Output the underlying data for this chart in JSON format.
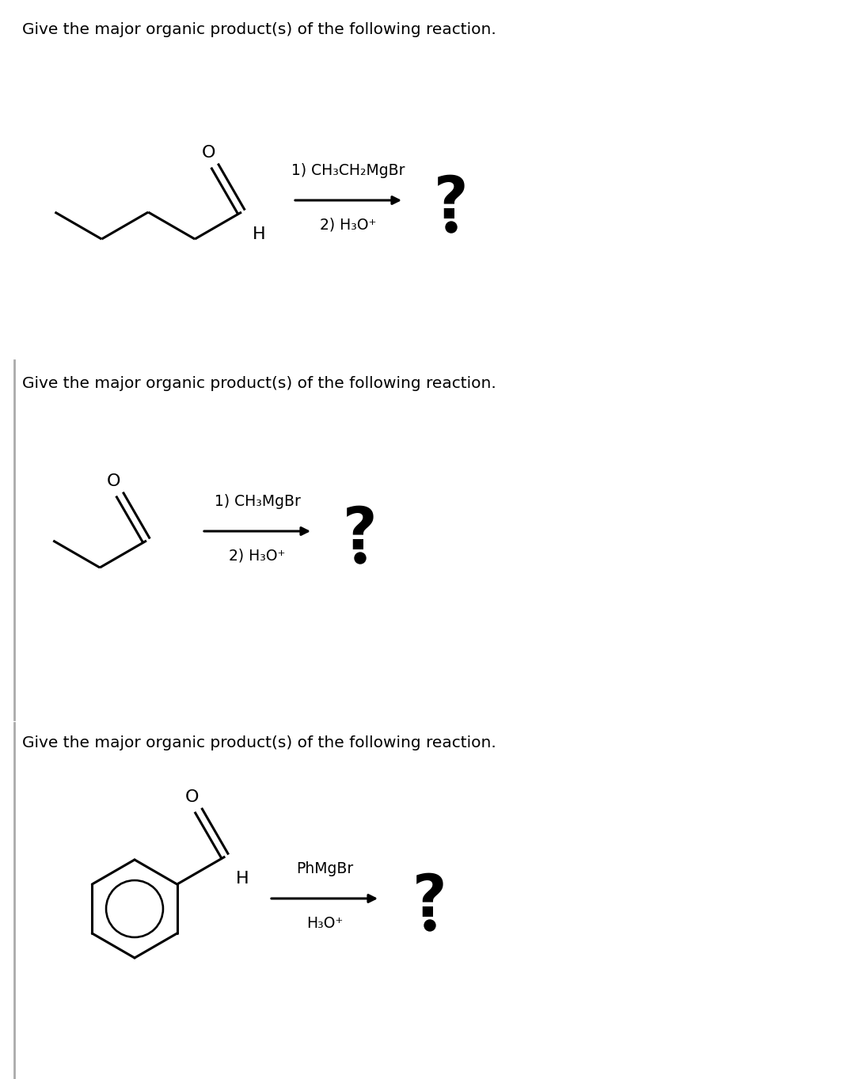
{
  "bg_color": "#ffffff",
  "text_color": "#000000",
  "line_color": "#000000",
  "header_text": "Give the major organic product(s) of the following reaction.",
  "header_fontsize": 14.5,
  "panel1": {
    "reagent_line1": "1) CH₃CH₂MgBr",
    "reagent_line2": "2) H₃O⁺"
  },
  "panel2": {
    "reagent_line1": "1) CH₃MgBr",
    "reagent_line2": "2) H₃O⁺"
  },
  "panel3": {
    "reagent_line1": "PhMgBr",
    "reagent_line2": "H₃O⁺"
  }
}
